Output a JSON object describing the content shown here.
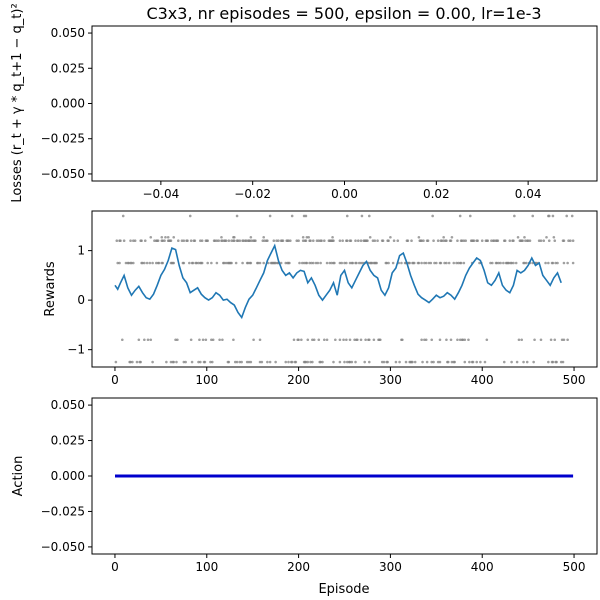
{
  "figure_title": "C3x3, nr episodes = 500, epsilon = 0.00, lr=1e-3",
  "colors": {
    "reward_line": "#1f77b4",
    "reward_points": "#808080",
    "action_line": "#0000cd"
  },
  "chart_data": [
    {
      "type": "line",
      "title": "C3x3, nr episodes = 500, epsilon = 0.00, lr=1e-3",
      "ylabel_prefix": "Losses ",
      "ylabel_formula": "(r_t + γ * q_t+1 − q_t)²",
      "xlim": [
        -0.055,
        0.055
      ],
      "ylim": [
        -0.055,
        0.055
      ],
      "xticks": [
        "−0.04",
        "−0.02",
        "0.00",
        "0.02",
        "0.04"
      ],
      "xtick_values": [
        -0.04,
        -0.02,
        0.0,
        0.02,
        0.04
      ],
      "yticks": [
        "0.050",
        "0.025",
        "0.000",
        "−0.025",
        "−0.050"
      ],
      "ytick_values": [
        0.05,
        0.025,
        0.0,
        -0.025,
        -0.05
      ],
      "series": [
        {
          "values": []
        }
      ]
    },
    {
      "type": "line",
      "ylabel": "Rewards",
      "xlim": [
        -25,
        525
      ],
      "ylim": [
        -1.35,
        1.8
      ],
      "xticks": [
        "0",
        "100",
        "200",
        "300",
        "400",
        "500"
      ],
      "xtick_values": [
        0,
        100,
        200,
        300,
        400,
        500
      ],
      "yticks": [
        "1",
        "0",
        "−1"
      ],
      "ytick_values": [
        1,
        0,
        -1
      ],
      "scatter_levels": [
        -1.25,
        -0.8,
        0.75,
        1.2,
        1.27,
        1.7
      ],
      "moving_average": {
        "x": [
          0,
          3,
          6,
          10,
          14,
          18,
          22,
          26,
          30,
          34,
          38,
          42,
          46,
          50,
          54,
          58,
          62,
          66,
          70,
          74,
          78,
          82,
          86,
          90,
          94,
          98,
          102,
          106,
          110,
          114,
          118,
          122,
          126,
          130,
          134,
          138,
          142,
          146,
          150,
          154,
          158,
          162,
          166,
          170,
          174,
          178,
          182,
          186,
          190,
          194,
          198,
          202,
          206,
          210,
          214,
          218,
          222,
          226,
          230,
          234,
          238,
          242,
          246,
          250,
          254,
          258,
          262,
          266,
          270,
          274,
          278,
          282,
          286,
          290,
          294,
          298,
          302,
          306,
          310,
          314,
          318,
          322,
          326,
          330,
          334,
          338,
          342,
          346,
          350,
          354,
          358,
          362,
          366,
          370,
          374,
          378,
          382,
          386,
          390,
          394,
          398,
          402,
          406,
          410,
          414,
          418,
          422,
          426,
          430,
          434,
          438,
          442,
          446,
          450,
          454,
          458,
          462,
          466,
          470,
          474,
          478,
          482,
          486
        ],
        "y": [
          0.3,
          0.22,
          0.35,
          0.5,
          0.25,
          0.1,
          0.2,
          0.28,
          0.15,
          0.05,
          0.02,
          0.12,
          0.3,
          0.5,
          0.62,
          0.8,
          1.05,
          1.02,
          0.7,
          0.45,
          0.35,
          0.15,
          0.2,
          0.25,
          0.12,
          0.05,
          0.0,
          0.05,
          0.15,
          0.1,
          0.0,
          0.02,
          -0.05,
          -0.1,
          -0.25,
          -0.35,
          -0.15,
          0.02,
          0.1,
          0.25,
          0.4,
          0.55,
          0.8,
          0.95,
          1.1,
          0.8,
          0.6,
          0.5,
          0.55,
          0.45,
          0.55,
          0.6,
          0.58,
          0.35,
          0.45,
          0.3,
          0.1,
          0.0,
          0.1,
          0.2,
          0.35,
          0.1,
          0.5,
          0.6,
          0.35,
          0.25,
          0.4,
          0.55,
          0.7,
          0.78,
          0.6,
          0.5,
          0.45,
          0.2,
          0.1,
          0.25,
          0.55,
          0.65,
          0.9,
          0.95,
          0.75,
          0.5,
          0.3,
          0.12,
          0.05,
          0.0,
          -0.05,
          0.02,
          0.1,
          0.05,
          0.08,
          0.15,
          0.1,
          0.02,
          0.15,
          0.3,
          0.5,
          0.65,
          0.75,
          0.85,
          0.8,
          0.6,
          0.35,
          0.3,
          0.4,
          0.55,
          0.3,
          0.2,
          0.15,
          0.3,
          0.6,
          0.55,
          0.6,
          0.7,
          0.85,
          0.7,
          0.75,
          0.5,
          0.4,
          0.3,
          0.45,
          0.55,
          0.35
        ]
      }
    },
    {
      "type": "line",
      "ylabel": "Action",
      "xlabel": "Episode",
      "xlim": [
        -25,
        525
      ],
      "ylim": [
        -0.055,
        0.055
      ],
      "xticks": [
        "0",
        "100",
        "200",
        "300",
        "400",
        "500"
      ],
      "xtick_values": [
        0,
        100,
        200,
        300,
        400,
        500
      ],
      "yticks": [
        "0.050",
        "0.025",
        "0.000",
        "−0.025",
        "−0.050"
      ],
      "ytick_values": [
        0.05,
        0.025,
        0.0,
        -0.025,
        -0.05
      ],
      "series": [
        {
          "x": [
            0,
            499
          ],
          "values": [
            0,
            0
          ]
        }
      ]
    }
  ]
}
